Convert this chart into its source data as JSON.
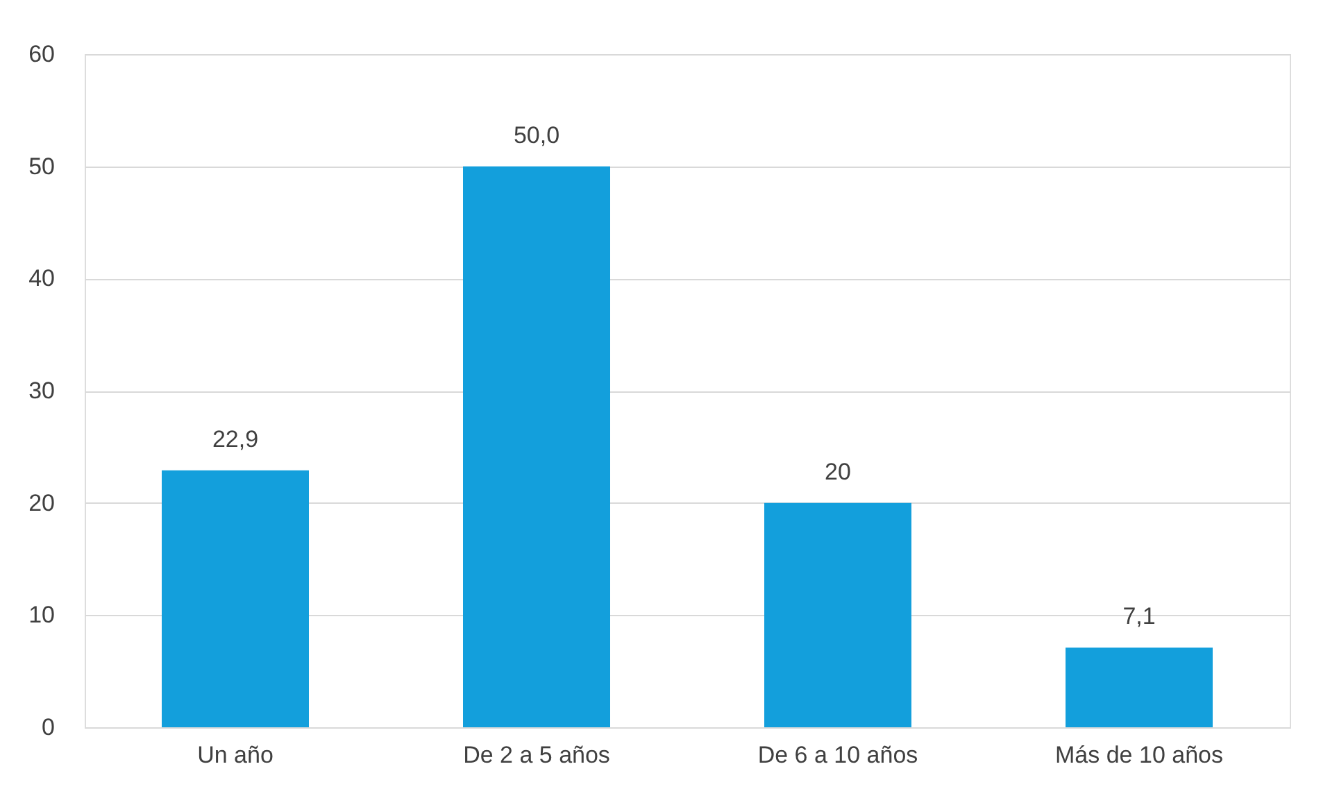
{
  "chart_data": {
    "type": "bar",
    "categories": [
      "Un año",
      "De 2 a 5 años",
      "De 6 a 10 años",
      "Más de 10 años"
    ],
    "values": [
      22.9,
      50.0,
      20,
      7.1
    ],
    "value_labels": [
      "22,9",
      "50,0",
      "20",
      "7,1"
    ],
    "color": "#139fdc",
    "ylim": [
      0,
      60
    ],
    "yticks": [
      0,
      10,
      20,
      30,
      40,
      50,
      60
    ],
    "grid": "y"
  }
}
